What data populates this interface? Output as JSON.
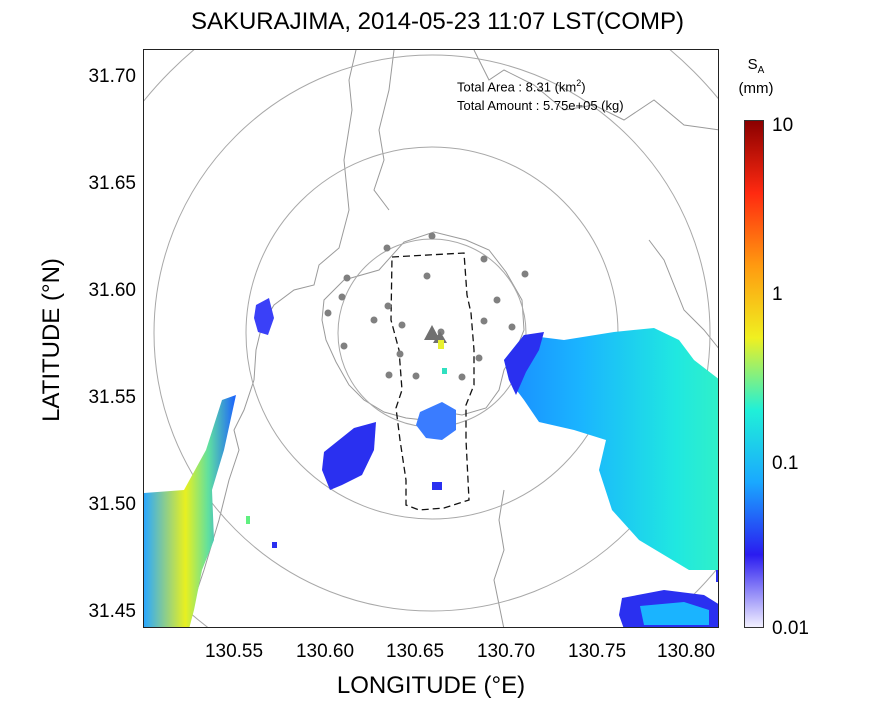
{
  "title": "SAKURAJIMA, 2014-05-23 11:07 LST(COMP)",
  "axes": {
    "xlabel": "LONGITUDE (°E)",
    "ylabel": "LATITUDE (°N)",
    "xticks": [
      "130.55",
      "130.60",
      "130.65",
      "130.70",
      "130.75",
      "130.80"
    ],
    "yticks": [
      "31.70",
      "31.65",
      "31.60",
      "31.55",
      "31.50",
      "31.45"
    ]
  },
  "stats": {
    "area_label": "Total Area   : 8.31 (km",
    "area_sup": "2",
    "area_close": ")",
    "amount_label": "Total Amount : 5.75e+05 (kg)"
  },
  "colorbar": {
    "title_main": "S",
    "title_sub": "A",
    "unit": "(mm)",
    "ticks": [
      "10",
      "1",
      "0.1",
      "0.01"
    ],
    "scale": "log",
    "colors": [
      "#f2f0ff",
      "#2a1cf0",
      "#1aa8ff",
      "#20f0d8",
      "#f0f020",
      "#ff9a10",
      "#ff2a10",
      "#8b0000"
    ]
  },
  "map": {
    "volcano_marker": "triangle",
    "station_marker": "circle",
    "range_rings": 4,
    "accent_colors": {
      "coast": "#9a9a9a",
      "ring": "#a8a8a8",
      "station": "#808080",
      "volcano": "#707070"
    }
  }
}
